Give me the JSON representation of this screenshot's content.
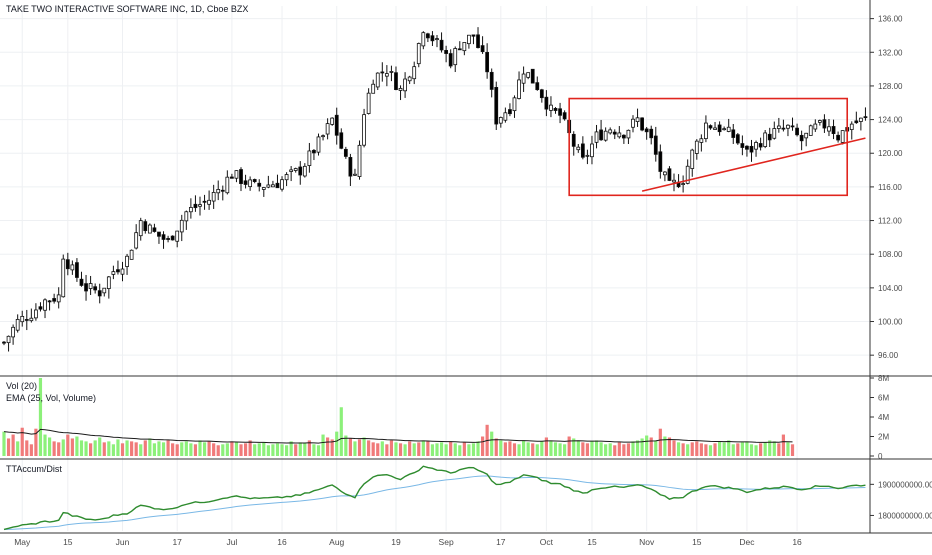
{
  "chart_data": {
    "type": "candlestick",
    "title": "TAKE TWO INTERACTIVE SOFTWARE INC, 1D, Cboe BZX",
    "price_axis": {
      "ylim": [
        94,
        137.5
      ],
      "ticks": [
        "136.00",
        "132.00",
        "128.00",
        "124.00",
        "120.00",
        "116.00",
        "112.00",
        "108.00",
        "104.00",
        "100.00",
        "96.00"
      ]
    },
    "volume_panel": {
      "labels": [
        "Vol (20)",
        "EMA (25, Vol, Volume)"
      ],
      "ylim": [
        0,
        8
      ],
      "ticks": [
        "8M",
        "6M",
        "4M",
        "2M",
        "0"
      ]
    },
    "accum_panel": {
      "label": "TTAccum/Dist",
      "ylim": [
        1750000000,
        1975000000
      ],
      "ticks": [
        "1900000000.00",
        "1800000000.00"
      ]
    },
    "x_ticks": [
      "May",
      "15",
      "Jun",
      "17",
      "Jul",
      "16",
      "Aug",
      "19",
      "Sep",
      "17",
      "Oct",
      "15",
      "Nov",
      "15",
      "Dec",
      "16"
    ],
    "grid": true,
    "annotations": {
      "rectangle": {
        "x_range": [
          124,
          185
        ],
        "y_range": [
          115,
          126.5
        ],
        "color": "#e0251e"
      },
      "trendline": {
        "from": [
          140,
          115.5
        ],
        "to": [
          189,
          121.8
        ],
        "color": "#e0251e"
      }
    },
    "colors": {
      "up": "#26a69a",
      "down": "#ef5350",
      "candle_up": "#ffffff",
      "candle_down": "#000000",
      "vol_up": "#8cf07a",
      "vol_down": "#f07a7a",
      "accum_line": "#2e8b2e",
      "accum_avg": "#7ab8e6",
      "ema_line": "#1a1a1a"
    },
    "price_path": [
      [
        0,
        97.5
      ],
      [
        3,
        100
      ],
      [
        6,
        101
      ],
      [
        9,
        102.5
      ],
      [
        12,
        103
      ],
      [
        13,
        108
      ],
      [
        15,
        106
      ],
      [
        18,
        104
      ],
      [
        21,
        103.5
      ],
      [
        24,
        106
      ],
      [
        27,
        107.5
      ],
      [
        30,
        112
      ],
      [
        33,
        110.5
      ],
      [
        36,
        109.5
      ],
      [
        40,
        113
      ],
      [
        45,
        114.5
      ],
      [
        50,
        117.5
      ],
      [
        55,
        116
      ],
      [
        60,
        116.5
      ],
      [
        65,
        118
      ],
      [
        70,
        122
      ],
      [
        72,
        124
      ],
      [
        75,
        119
      ],
      [
        77,
        117
      ],
      [
        79,
        125
      ],
      [
        81,
        129
      ],
      [
        84,
        130
      ],
      [
        87,
        127.5
      ],
      [
        90,
        131
      ],
      [
        92,
        135
      ],
      [
        95,
        133
      ],
      [
        98,
        131
      ],
      [
        100,
        133
      ],
      [
        103,
        134
      ],
      [
        106,
        130
      ],
      [
        108,
        124
      ],
      [
        111,
        125.5
      ],
      [
        114,
        130
      ],
      [
        117,
        128
      ],
      [
        120,
        125
      ],
      [
        122,
        124.5
      ],
      [
        125,
        121
      ],
      [
        127,
        119
      ],
      [
        130,
        122
      ],
      [
        133,
        123
      ],
      [
        136,
        122.5
      ],
      [
        139,
        124
      ],
      [
        142,
        121.5
      ],
      [
        144,
        118
      ],
      [
        146,
        116
      ],
      [
        149,
        117
      ],
      [
        151,
        120
      ],
      [
        154,
        123.5
      ],
      [
        157,
        123
      ],
      [
        160,
        122
      ],
      [
        163,
        120
      ],
      [
        166,
        121.5
      ],
      [
        169,
        122.5
      ],
      [
        172,
        123
      ],
      [
        175,
        121.5
      ],
      [
        178,
        123
      ],
      [
        181,
        123.5
      ],
      [
        183,
        122
      ],
      [
        186,
        123.5
      ],
      [
        189,
        124
      ]
    ],
    "volume_values": [
      2.5,
      1.8,
      2.2,
      1.5,
      2.9,
      1.6,
      1.2,
      2.8,
      8.0,
      2.2,
      1.9,
      1.5,
      1.4,
      1.7,
      2.2,
      1.8,
      2.0,
      1.6,
      1.5,
      1.3,
      1.6,
      1.9,
      1.4,
      1.5,
      1.2,
      1.7,
      1.3,
      1.6,
      1.5,
      1.4,
      1.2,
      1.6,
      1.8,
      1.3,
      1.5,
      1.4,
      1.6,
      1.3,
      1.2,
      1.4,
      1.5,
      1.3,
      1.2,
      1.6,
      1.4,
      1.5,
      1.3,
      1.1,
      1.2,
      1.3,
      1.5,
      1.4,
      1.2,
      1.3,
      1.6,
      1.2,
      1.3,
      1.4,
      1.1,
      1.2,
      1.3,
      1.2,
      1.1,
      1.5,
      1.2,
      1.4,
      1.3,
      1.6,
      1.2,
      1.1,
      2.2,
      1.9,
      1.7,
      2.5,
      5.0,
      2.1,
      1.8,
      1.5,
      1.7,
      1.9,
      1.6,
      1.4,
      1.3,
      1.5,
      1.2,
      1.6,
      1.4,
      1.3,
      1.2,
      1.5,
      1.3,
      1.4,
      1.6,
      1.5,
      1.2,
      1.3,
      1.4,
      1.2,
      1.5,
      1.3,
      1.1,
      1.4,
      1.2,
      1.3,
      1.5,
      2.0,
      3.2,
      2.5,
      1.8,
      1.6,
      1.4,
      1.5,
      1.3,
      1.2,
      1.6,
      1.4,
      1.3,
      1.2,
      1.5,
      1.9,
      1.6,
      1.4,
      1.3,
      1.2,
      2.0,
      1.8,
      1.6,
      1.4,
      1.3,
      1.5,
      1.6,
      1.4,
      1.2,
      1.3,
      1.1,
      1.4,
      1.2,
      1.3,
      1.5,
      1.6,
      1.8,
      2.1,
      1.9,
      1.6,
      2.8,
      2.0,
      1.9,
      1.6,
      1.4,
      1.3,
      1.2,
      1.4,
      1.5,
      1.3,
      1.2,
      1.1,
      1.3,
      1.5,
      1.4,
      1.6,
      1.2,
      1.3,
      1.4,
      1.5,
      1.2,
      1.1,
      1.3,
      1.4,
      1.6,
      1.5,
      1.3,
      2.2,
      1.4,
      1.2
    ]
  }
}
